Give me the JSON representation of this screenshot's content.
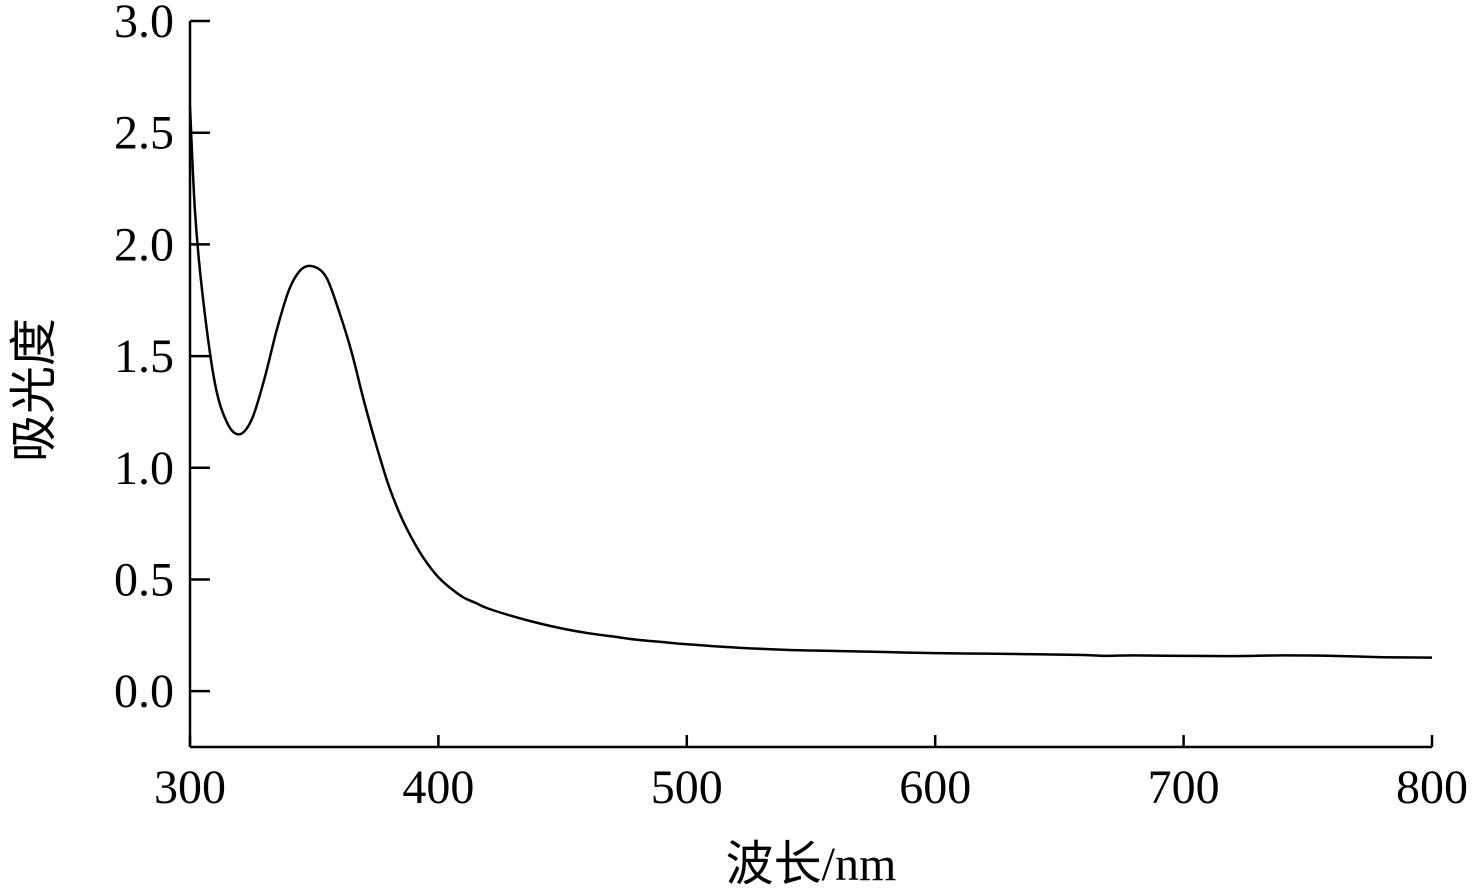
{
  "chart_data": {
    "type": "line",
    "title": "",
    "xlabel": "波长/nm",
    "ylabel": "吸光度",
    "xlim": [
      300,
      800
    ],
    "ylim": [
      -0.25,
      3.0
    ],
    "xticks": [
      300,
      400,
      500,
      600,
      700,
      800
    ],
    "xtick_labels": [
      "300",
      "400",
      "500",
      "600",
      "700",
      "800"
    ],
    "yticks": [
      0.0,
      0.5,
      1.0,
      1.5,
      2.0,
      2.5,
      3.0
    ],
    "ytick_labels": [
      "0.0",
      "0.5",
      "1.0",
      "1.5",
      "2.0",
      "2.5",
      "3.0"
    ],
    "grid": false,
    "legend": "none",
    "line_color": "#000000",
    "series": [
      {
        "x": [
          300,
          302,
          305,
          310,
          315,
          320,
          325,
          330,
          335,
          340,
          345,
          350,
          355,
          360,
          365,
          370,
          375,
          380,
          385,
          390,
          395,
          400,
          405,
          410,
          415,
          420,
          430,
          440,
          450,
          460,
          470,
          480,
          490,
          500,
          520,
          540,
          560,
          580,
          600,
          620,
          640,
          660,
          668,
          680,
          700,
          720,
          740,
          760,
          780,
          800
        ],
        "y": [
          2.62,
          2.15,
          1.78,
          1.38,
          1.2,
          1.15,
          1.22,
          1.4,
          1.62,
          1.8,
          1.89,
          1.9,
          1.85,
          1.7,
          1.52,
          1.3,
          1.1,
          0.92,
          0.78,
          0.67,
          0.58,
          0.51,
          0.46,
          0.42,
          0.395,
          0.37,
          0.335,
          0.305,
          0.28,
          0.26,
          0.245,
          0.23,
          0.22,
          0.21,
          0.195,
          0.185,
          0.18,
          0.175,
          0.17,
          0.168,
          0.165,
          0.162,
          0.158,
          0.16,
          0.158,
          0.157,
          0.16,
          0.158,
          0.152,
          0.15
        ]
      }
    ]
  }
}
